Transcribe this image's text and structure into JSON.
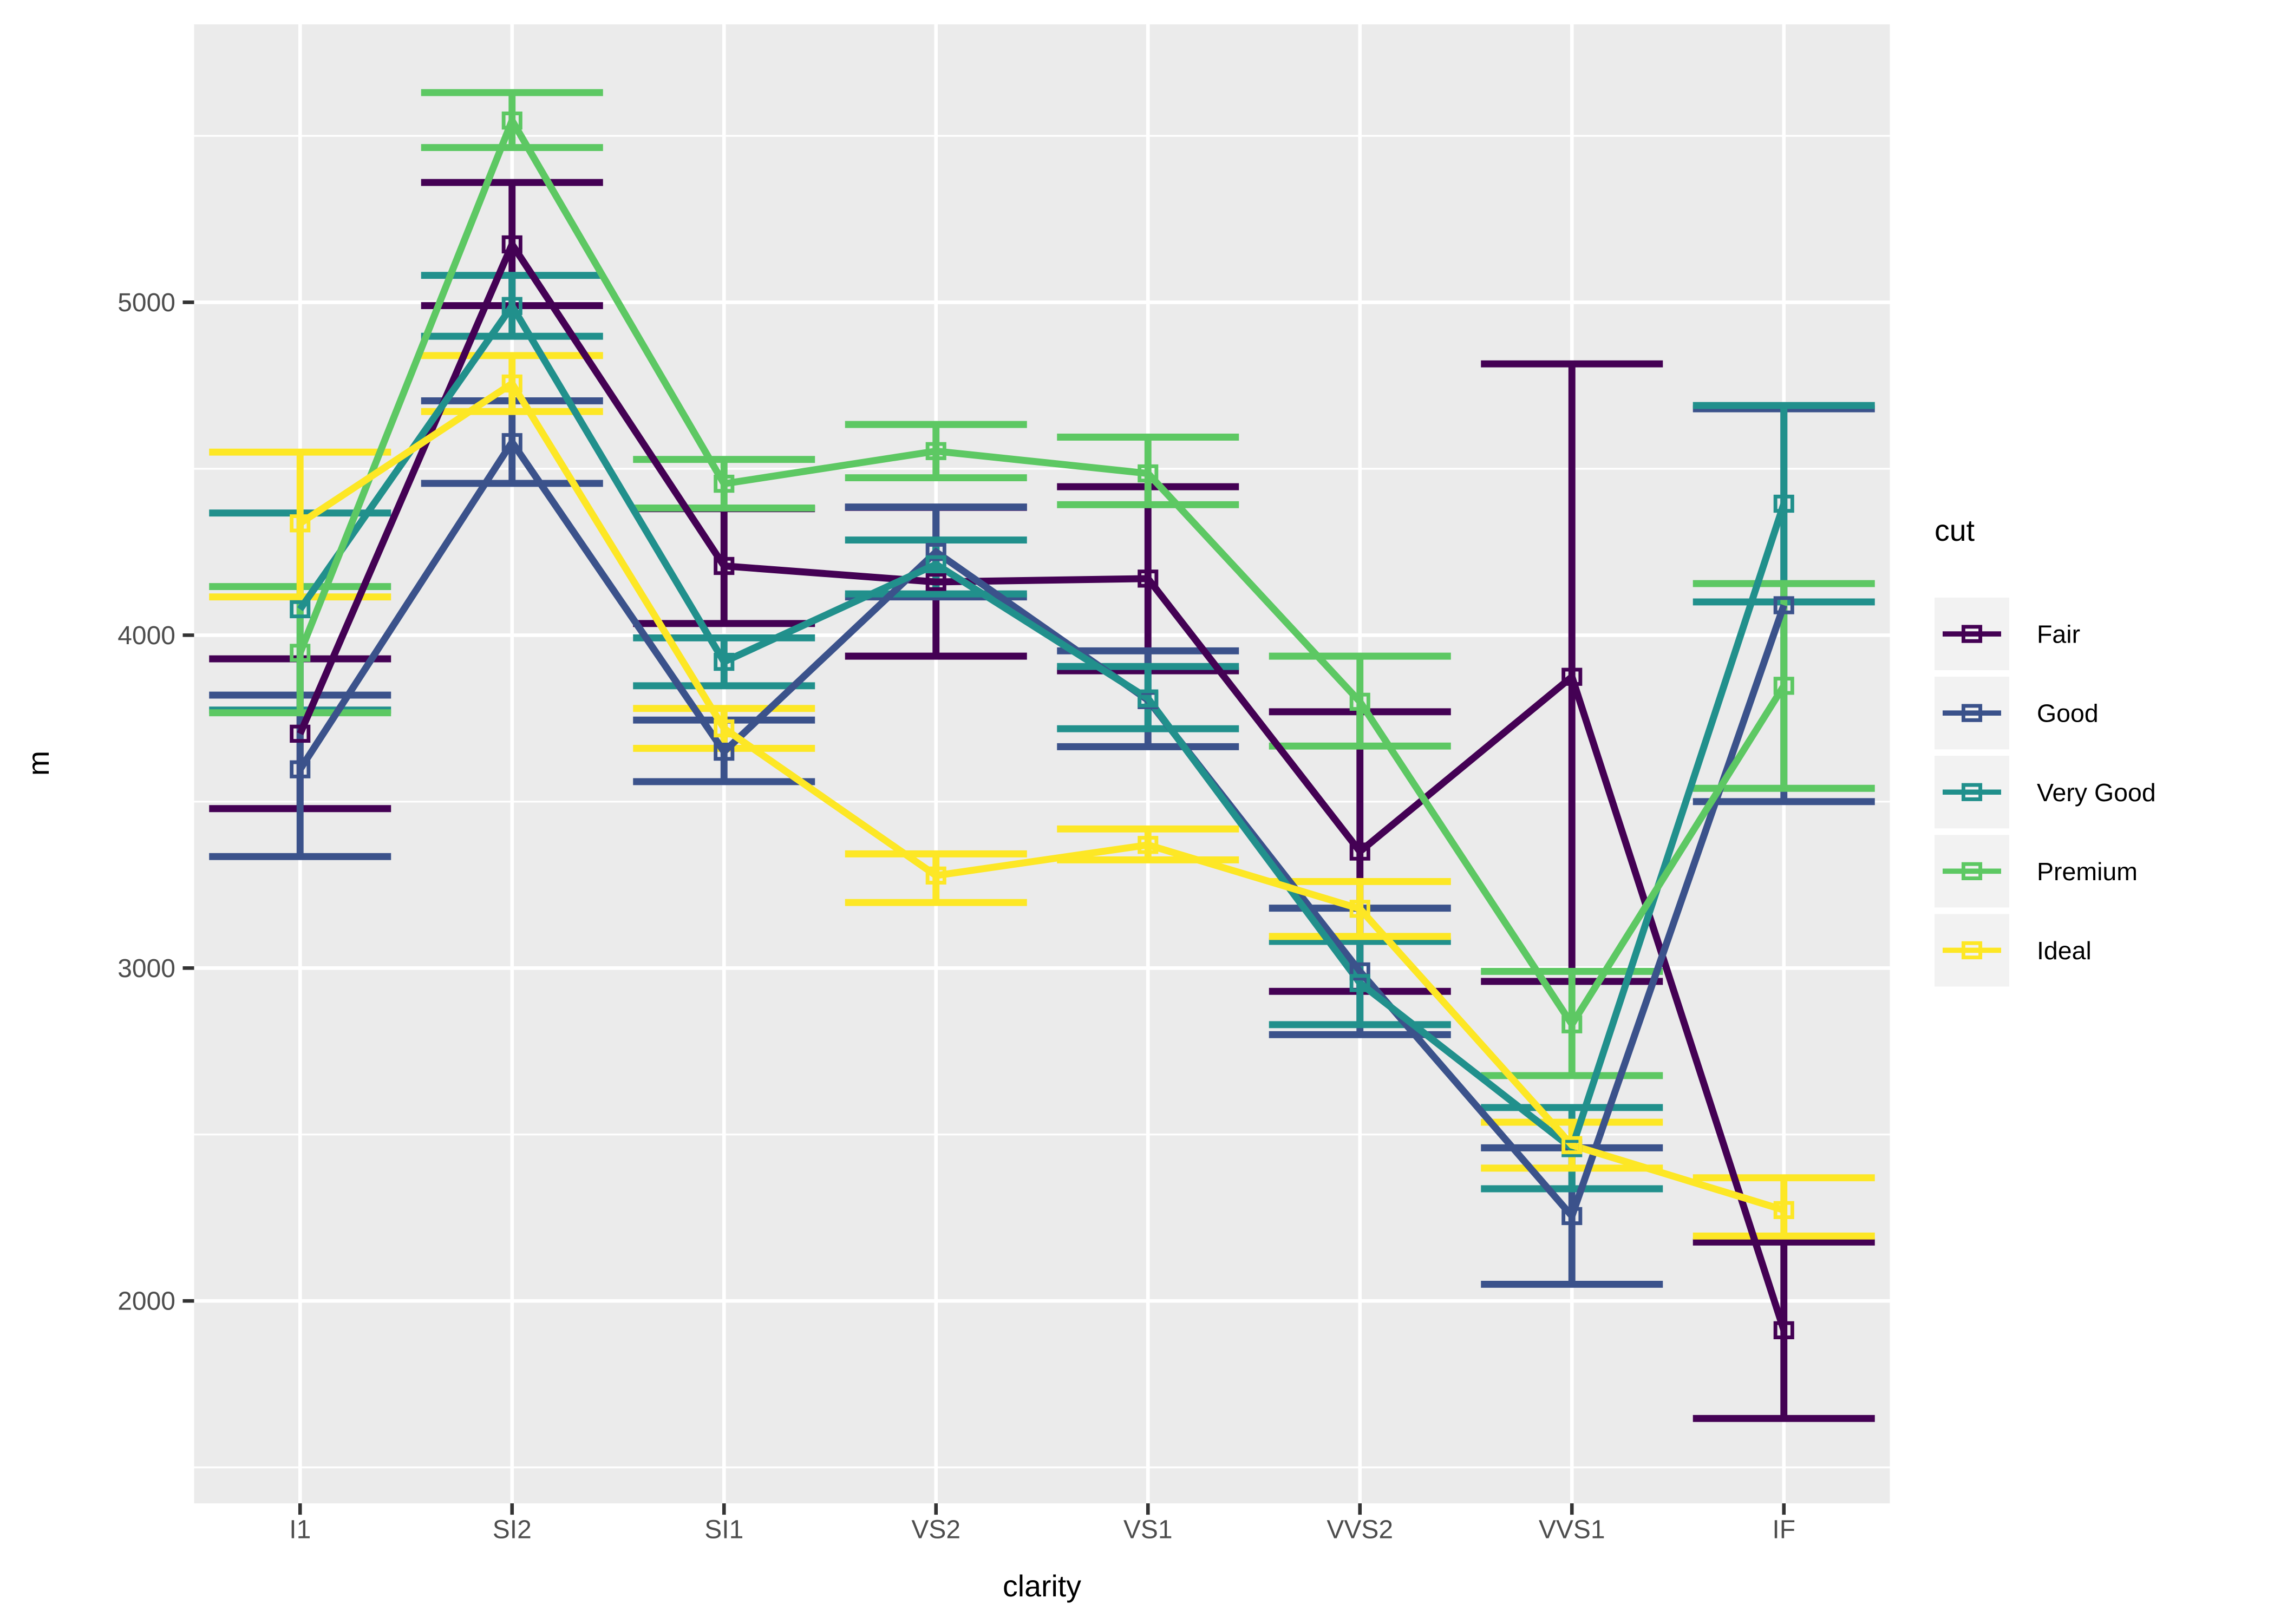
{
  "figure": {
    "background": "#FFFFFF"
  },
  "panel": {
    "fill": "#EBEBEB",
    "grid_major_color": "#FFFFFF",
    "grid_minor_color": "#FFFFFF",
    "tick_color": "#333333",
    "tick_label_color": "#4D4D4D",
    "title_color": "#000000"
  },
  "axes": {
    "y_title": "m",
    "x_title": "clarity",
    "y_ticks": [
      2000,
      3000,
      4000,
      5000
    ],
    "y_minor_ticks": [
      1500,
      2500,
      3500,
      4500,
      5500
    ]
  },
  "legend": {
    "title": "cut",
    "key_fill": "#F2F2F2"
  },
  "chart_data": {
    "type": "line",
    "title": "",
    "xlabel": "clarity",
    "ylabel": "m",
    "ylim": [
      1392,
      5835
    ],
    "grid": "on",
    "legend_position": "right",
    "categories": [
      "I1",
      "SI2",
      "SI1",
      "VS2",
      "VS1",
      "VVS2",
      "VVS1",
      "IF"
    ],
    "series": [
      {
        "name": "Fair",
        "color": "#440154",
        "mean": [
          3704,
          5174,
          4208,
          4160,
          4170,
          3350,
          3875,
          1912
        ],
        "lo": [
          3479,
          4990,
          4035,
          3937,
          3893,
          2930,
          2960,
          1647
        ],
        "hi": [
          3929,
          5360,
          4380,
          4384,
          4446,
          3770,
          4815,
          2177
        ]
      },
      {
        "name": "Good",
        "color": "#3B528B",
        "mean": [
          3597,
          4580,
          3650,
          4250,
          3805,
          2990,
          2255,
          4090
        ],
        "lo": [
          3335,
          4456,
          3560,
          4115,
          3665,
          2800,
          2050,
          3500
        ],
        "hi": [
          3820,
          4704,
          3745,
          4385,
          3953,
          3180,
          2460,
          4680
        ]
      },
      {
        "name": "Very Good",
        "color": "#21908C",
        "mean": [
          4078,
          4989,
          3920,
          4213,
          3810,
          2955,
          2459,
          4395
        ],
        "lo": [
          3775,
          4898,
          3848,
          4124,
          3719,
          2830,
          2337,
          4100
        ],
        "hi": [
          4367,
          5081,
          3992,
          4286,
          3906,
          3080,
          2581,
          4690
        ]
      },
      {
        "name": "Premium",
        "color": "#5DC863",
        "mean": [
          3947,
          5546,
          4455,
          4553,
          4486,
          3800,
          2831,
          3848
        ],
        "lo": [
          3767,
          5465,
          4382,
          4473,
          4392,
          3667,
          2677,
          3540
        ],
        "hi": [
          4146,
          5630,
          4528,
          4633,
          4595,
          3937,
          2990,
          4155
        ]
      },
      {
        "name": "Ideal",
        "color": "#FDE725",
        "mean": [
          4336,
          4756,
          3720,
          3278,
          3370,
          3178,
          2468,
          2273
        ],
        "lo": [
          4115,
          4672,
          3660,
          3197,
          3325,
          3095,
          2399,
          2195
        ],
        "hi": [
          4550,
          4840,
          3780,
          3343,
          3418,
          3260,
          2537,
          2370
        ]
      }
    ]
  }
}
